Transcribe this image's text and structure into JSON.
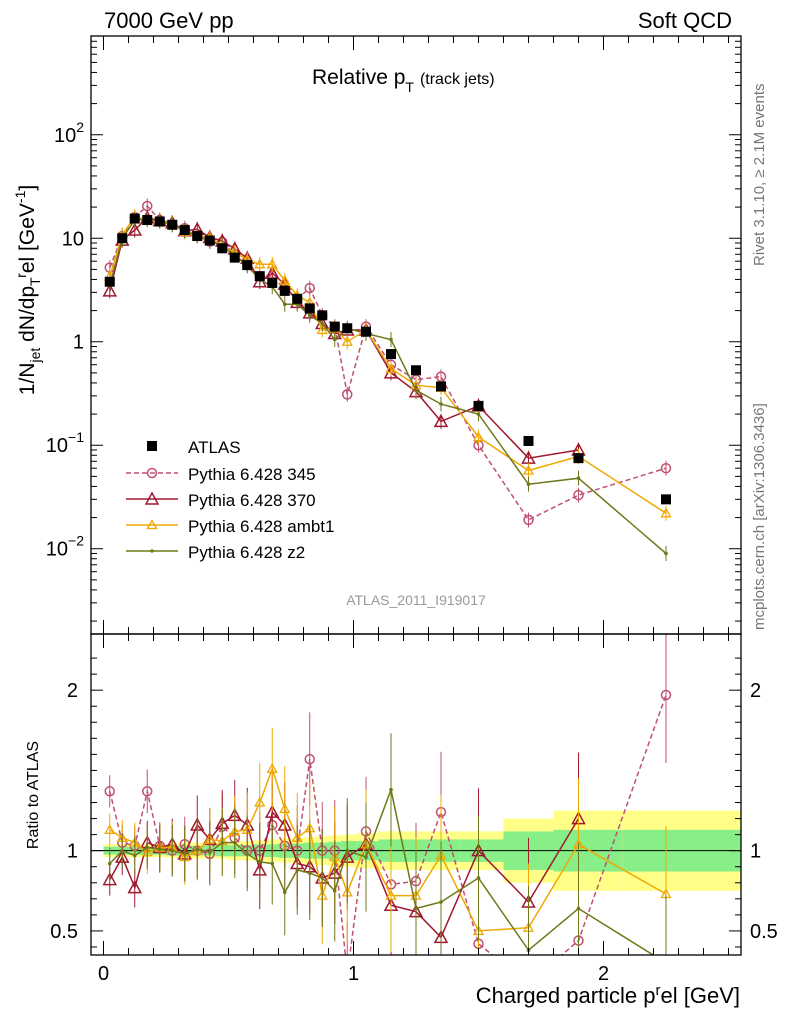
{
  "header": {
    "left": "7000 GeV pp",
    "right": "Soft QCD"
  },
  "side": {
    "top": "Rivet 3.1.10, ≥ 2.1M events",
    "bottom": "mcplots.cern.ch [arXiv:1306.3436]"
  },
  "chart_data": [
    {
      "type": "scatter",
      "panel": "main",
      "title_main": "Relative p",
      "title_sub": "T",
      "title_note": "(track jets)",
      "ylabel": "1/N_jet dN/dp_T^rel [GeV^-1]",
      "yscale": "log",
      "ylim": [
        0.0015,
        900
      ],
      "xlim": [
        -0.05,
        2.55
      ],
      "y_ticks": [
        {
          "v": 100,
          "base": "10",
          "exp": "2"
        },
        {
          "v": 10,
          "base": "10",
          "exp": ""
        },
        {
          "v": 1,
          "base": "1",
          "exp": ""
        },
        {
          "v": 0.1,
          "base": "10",
          "exp": "−1"
        },
        {
          "v": 0.01,
          "base": "10",
          "exp": "−2"
        }
      ],
      "watermark": "ATLAS_2011_I919017",
      "legend_position": "lower-left",
      "series": [
        {
          "name": "ATLAS",
          "style": "square",
          "color": "#000000",
          "x": [
            0.025,
            0.075,
            0.125,
            0.175,
            0.225,
            0.275,
            0.325,
            0.375,
            0.425,
            0.475,
            0.525,
            0.575,
            0.625,
            0.675,
            0.725,
            0.775,
            0.825,
            0.875,
            0.925,
            0.975,
            1.05,
            1.15,
            1.25,
            1.35,
            1.5,
            1.7,
            1.9,
            2.25
          ],
          "y": [
            3.8,
            10,
            15.5,
            15,
            14.5,
            13.5,
            12,
            10.5,
            9.5,
            8,
            6.5,
            5.5,
            4.3,
            3.7,
            3.1,
            2.6,
            2.1,
            1.8,
            1.4,
            1.35,
            1.25,
            0.76,
            0.53,
            0.37,
            0.24,
            0.11,
            0.075,
            0.03
          ]
        },
        {
          "name": "Pythia 6.428 345",
          "style": "circle",
          "color": "#c05070",
          "dashed": true,
          "x": [
            0.025,
            0.075,
            0.125,
            0.175,
            0.225,
            0.275,
            0.325,
            0.375,
            0.425,
            0.475,
            0.525,
            0.575,
            0.625,
            0.675,
            0.725,
            0.775,
            0.825,
            0.875,
            0.925,
            0.975,
            1.05,
            1.15,
            1.25,
            1.35,
            1.5,
            1.7,
            1.9,
            2.25
          ],
          "y": [
            5.2,
            10.5,
            16,
            20.5,
            15,
            13.5,
            12.5,
            10.5,
            9.3,
            9.2,
            7,
            5.5,
            4.3,
            4.3,
            3.2,
            2.6,
            3.3,
            1.8,
            1.4,
            0.31,
            1.4,
            0.6,
            0.43,
            0.46,
            0.1,
            0.019,
            0.033,
            0.06
          ]
        },
        {
          "name": "Pythia 6.428 370",
          "style": "triangle",
          "color": "#a01830",
          "x": [
            0.025,
            0.075,
            0.125,
            0.175,
            0.225,
            0.275,
            0.325,
            0.375,
            0.425,
            0.475,
            0.525,
            0.575,
            0.625,
            0.675,
            0.725,
            0.775,
            0.825,
            0.875,
            0.925,
            0.975,
            1.05,
            1.15,
            1.25,
            1.35,
            1.5,
            1.7,
            1.9
          ],
          "y": [
            3.1,
            9.6,
            12,
            15.8,
            14.8,
            14.1,
            11.8,
            12.2,
            10.2,
            9.4,
            7.9,
            6.4,
            3.8,
            4.6,
            3.6,
            2.4,
            1.9,
            1.5,
            1.2,
            1.3,
            1.3,
            0.5,
            0.33,
            0.17,
            0.24,
            0.075,
            0.09
          ]
        },
        {
          "name": "Pythia 6.428 ambt1",
          "style": "triangle-small",
          "color": "#f0a800",
          "x": [
            0.025,
            0.075,
            0.125,
            0.175,
            0.225,
            0.275,
            0.325,
            0.375,
            0.425,
            0.475,
            0.525,
            0.575,
            0.625,
            0.675,
            0.725,
            0.775,
            0.825,
            0.875,
            0.925,
            0.975,
            1.05,
            1.15,
            1.25,
            1.35,
            1.5,
            1.7,
            1.9,
            2.25
          ],
          "y": [
            4.3,
            10.8,
            16.2,
            14.9,
            14.8,
            13.8,
            11.5,
            10.5,
            10.2,
            8.5,
            7.3,
            6.2,
            5.6,
            5.6,
            3.9,
            2.8,
            2.4,
            1.3,
            1.35,
            1.0,
            1.3,
            0.55,
            0.38,
            0.36,
            0.12,
            0.057,
            0.078,
            0.022
          ]
        },
        {
          "name": "Pythia 6.428 z2",
          "style": "dot",
          "color": "#707818",
          "x": [
            0.025,
            0.075,
            0.125,
            0.175,
            0.225,
            0.275,
            0.325,
            0.375,
            0.425,
            0.475,
            0.525,
            0.575,
            0.625,
            0.675,
            0.725,
            0.775,
            0.825,
            0.875,
            0.925,
            0.975,
            1.05,
            1.15,
            1.25,
            1.35,
            1.5,
            1.7,
            1.9,
            2.25
          ],
          "y": [
            3.5,
            10,
            15,
            15.3,
            14.6,
            13.5,
            11.8,
            10.6,
            9.4,
            8.4,
            6.8,
            5.4,
            4.0,
            3.4,
            2.3,
            2.3,
            1.8,
            1.5,
            1.05,
            1.35,
            1.2,
            1.05,
            0.34,
            0.25,
            0.2,
            0.042,
            0.048,
            0.009
          ]
        }
      ]
    },
    {
      "type": "line",
      "panel": "ratio",
      "ylabel": "Ratio to ATLAS",
      "xlabel": "Charged particle p_T^rel [GeV]",
      "xlim": [
        -0.05,
        2.55
      ],
      "ylim": [
        0.35,
        2.35
      ],
      "x_ticks": [
        "0",
        "1",
        "2"
      ],
      "y_ticks": [
        "0.5",
        "1",
        "2"
      ],
      "band_yellow_half": [
        0.04,
        0.04,
        0.04,
        0.04,
        0.04,
        0.045,
        0.05,
        0.05,
        0.05,
        0.05,
        0.06,
        0.06,
        0.065,
        0.07,
        0.075,
        0.08,
        0.085,
        0.09,
        0.095,
        0.1,
        0.11,
        0.12,
        0.12,
        0.12,
        0.12,
        0.2,
        0.25,
        0.25
      ],
      "band_green_half": [
        0.025,
        0.025,
        0.025,
        0.025,
        0.025,
        0.03,
        0.03,
        0.03,
        0.03,
        0.035,
        0.035,
        0.035,
        0.04,
        0.04,
        0.045,
        0.045,
        0.05,
        0.05,
        0.055,
        0.06,
        0.06,
        0.07,
        0.07,
        0.07,
        0.07,
        0.12,
        0.13,
        0.13
      ],
      "series": [
        {
          "name": "Pythia 6.428 345",
          "y": [
            1.37,
            1.05,
            1.03,
            1.37,
            1.03,
            1.0,
            1.04,
            1.0,
            0.98,
            1.15,
            1.08,
            1.0,
            1.0,
            1.16,
            1.03,
            1.0,
            1.57,
            1.0,
            1.0,
            0.23,
            1.12,
            0.79,
            0.81,
            1.24,
            0.42,
            0.17,
            0.44,
            1.97
          ]
        },
        {
          "name": "Pythia 6.428 370",
          "y": [
            0.82,
            0.96,
            0.77,
            1.05,
            1.02,
            1.04,
            0.98,
            1.16,
            1.07,
            1.17,
            1.22,
            1.16,
            0.88,
            1.24,
            1.16,
            0.92,
            0.9,
            0.83,
            0.86,
            0.96,
            1.04,
            0.66,
            0.62,
            0.46,
            1.0,
            0.68,
            1.2
          ]
        },
        {
          "name": "Pythia 6.428 ambt1",
          "y": [
            1.13,
            1.08,
            1.05,
            0.99,
            1.02,
            1.02,
            0.96,
            1.0,
            1.07,
            1.06,
            1.12,
            1.13,
            1.3,
            1.51,
            1.26,
            1.08,
            1.14,
            0.72,
            0.96,
            0.74,
            1.04,
            0.72,
            0.72,
            0.97,
            0.5,
            0.52,
            1.04,
            0.73
          ]
        },
        {
          "name": "Pythia 6.428 z2",
          "y": [
            0.92,
            1.0,
            0.97,
            1.02,
            1.01,
            1.0,
            0.98,
            1.01,
            0.99,
            1.05,
            1.05,
            0.98,
            0.93,
            0.92,
            0.74,
            0.88,
            0.86,
            0.83,
            0.75,
            1.0,
            0.96,
            1.38,
            0.64,
            0.68,
            0.83,
            0.38,
            0.64,
            0.3
          ]
        }
      ]
    }
  ]
}
